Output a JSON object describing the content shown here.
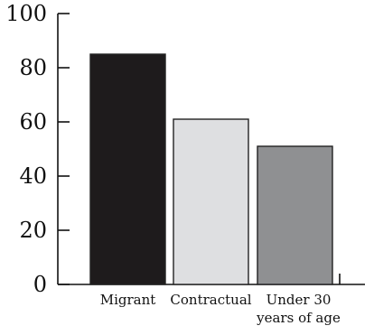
{
  "chart_data": {
    "type": "bar",
    "categories": [
      "Migrant",
      "Contractual",
      "Under 30 years of age"
    ],
    "category_label_lines": [
      [
        "Migrant"
      ],
      [
        "Contractual"
      ],
      [
        "Under 30",
        "years of age"
      ]
    ],
    "values": [
      85,
      61,
      51
    ],
    "bar_colors": [
      "#1e1b1c",
      "#dedfe1",
      "#8f9092"
    ],
    "ylim": [
      0,
      100
    ],
    "yticks": [
      0,
      20,
      40,
      60,
      80,
      100
    ],
    "ytick_labels": [
      "0",
      "20",
      "40",
      "60",
      "80",
      "100"
    ],
    "grid": false,
    "title": "",
    "xlabel": "",
    "ylabel": ""
  }
}
